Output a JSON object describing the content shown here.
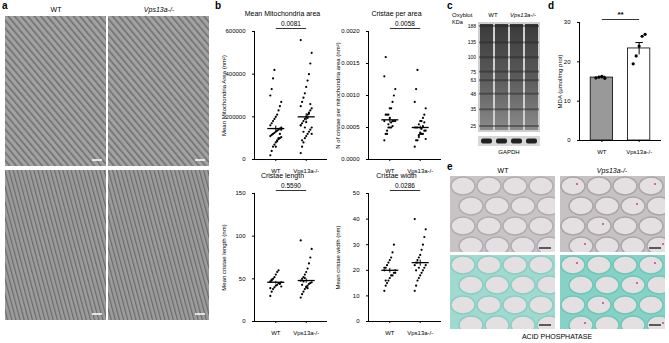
{
  "panels": {
    "a": {
      "letter": "a",
      "labels": [
        "WT",
        "Vps13a-/-"
      ]
    },
    "b": {
      "letter": "b"
    },
    "c": {
      "letter": "c",
      "title": "Oxyblot",
      "labels": [
        "WT",
        "Vps13a-/-"
      ],
      "marker_unit": "KDa",
      "markers": [
        188,
        135,
        100,
        75,
        63,
        48,
        35,
        25
      ],
      "loading_control": "GAPDH"
    },
    "d": {
      "letter": "d"
    },
    "e": {
      "letter": "e",
      "labels": [
        "WT",
        "Vps13a-/-"
      ],
      "caption": "ACID PHOSPHATASE"
    }
  },
  "chart_data": [
    {
      "type": "scatter",
      "title": "Mean Mitochondria area",
      "y_label": "Mean Mitochondria Area (nm²)",
      "color": "#000000",
      "series": [
        {
          "name": "WT",
          "values": [
            20000,
            40000,
            60000,
            70000,
            80000,
            90000,
            95000,
            100000,
            105000,
            110000,
            115000,
            120000,
            125000,
            130000,
            135000,
            140000,
            145000,
            150000,
            160000,
            170000,
            180000,
            190000,
            200000,
            210000,
            230000,
            250000,
            270000,
            300000,
            330000,
            380000,
            420000,
            60000,
            85000,
            100000,
            120000,
            140000
          ]
        },
        {
          "name": "Vps13a-/-",
          "values": [
            30000,
            60000,
            80000,
            100000,
            110000,
            120000,
            130000,
            140000,
            150000,
            160000,
            170000,
            180000,
            190000,
            200000,
            210000,
            220000,
            230000,
            240000,
            250000,
            270000,
            290000,
            310000,
            340000,
            370000,
            400000,
            450000,
            500000,
            560000,
            90000,
            130000,
            150000,
            175000,
            195000,
            215000,
            260000,
            120000,
            160000
          ]
        }
      ],
      "mean": [
        145000,
        200000
      ],
      "error": [
        14000,
        17000
      ],
      "annotation": "0.0081",
      "ylim": [
        0,
        600000
      ],
      "yticks": [
        0,
        200000,
        400000,
        600000
      ]
    },
    {
      "type": "scatter",
      "title": "Cristae per area",
      "y_label": "N of cristae per mitochondria area (nm²)",
      "color": "#000000",
      "series": [
        {
          "name": "WT",
          "values": [
            0.0003,
            0.0004,
            0.0004,
            0.0005,
            0.0005,
            0.0005,
            0.0006,
            0.0006,
            0.0006,
            0.0006,
            0.0007,
            0.0007,
            0.0007,
            0.0008,
            0.0008,
            0.0009,
            0.001,
            0.0011,
            0.0013,
            0.0016,
            0.00045,
            0.00055,
            0.00065,
            0.00058,
            0.00052
          ]
        },
        {
          "name": "Vps13a-/-",
          "values": [
            0.0002,
            0.0003,
            0.0003,
            0.00035,
            0.0004,
            0.0004,
            0.0004,
            0.00045,
            0.00045,
            0.0005,
            0.0005,
            0.0005,
            0.00055,
            0.0006,
            0.0006,
            0.00065,
            0.0007,
            0.0008,
            0.0009,
            0.0011,
            0.0014,
            0.00038,
            0.00042,
            0.00048,
            0.00052,
            0.00058,
            0.00032
          ]
        }
      ],
      "mean": [
        0.00062,
        0.0005
      ],
      "error": [
        4e-05,
        3e-05
      ],
      "annotation": "0.0058",
      "ylim": [
        0,
        0.002
      ],
      "yticks": [
        {
          "value": 0,
          "label": "0.0000"
        },
        {
          "value": 0.0005,
          "label": "0.0005"
        },
        {
          "value": 0.001,
          "label": "0.0010"
        },
        {
          "value": 0.0015,
          "label": "0.0015"
        },
        {
          "value": 0.002,
          "label": "0.0020"
        }
      ]
    },
    {
      "type": "scatter",
      "title": "Cristae length",
      "y_label": "Mean cristae length (nm)",
      "color": "#000000",
      "series": [
        {
          "name": "WT",
          "values": [
            30,
            35,
            38,
            40,
            42,
            43,
            45,
            45,
            46,
            47,
            48,
            50,
            52,
            55,
            58,
            60,
            44,
            41,
            39,
            49
          ]
        },
        {
          "name": "Vps13a-/-",
          "values": [
            28,
            32,
            35,
            38,
            40,
            42,
            44,
            45,
            46,
            48,
            50,
            52,
            55,
            58,
            62,
            68,
            75,
            85,
            95,
            43,
            47,
            51,
            41,
            39
          ]
        }
      ],
      "mean": [
        46,
        48
      ],
      "error": [
        1.5,
        2.5
      ],
      "annotation": "0.5590",
      "ylim": [
        0,
        150
      ],
      "yticks": [
        0,
        50,
        100,
        150
      ]
    },
    {
      "type": "scatter",
      "title": "Cristae width",
      "y_label": "Mean cristae width (nm)",
      "color": "#000000",
      "series": [
        {
          "name": "WT",
          "values": [
            12,
            14,
            15,
            16,
            17,
            18,
            18,
            19,
            20,
            20,
            21,
            22,
            23,
            24,
            25,
            27,
            30,
            19,
            21,
            16
          ]
        },
        {
          "name": "Vps13a-/-",
          "values": [
            12,
            14,
            16,
            17,
            18,
            19,
            20,
            21,
            22,
            22,
            23,
            24,
            25,
            26,
            28,
            30,
            33,
            36,
            40,
            20,
            23,
            21
          ]
        }
      ],
      "mean": [
        20,
        23
      ],
      "error": [
        0.9,
        1.2
      ],
      "annotation": "0.0286",
      "ylim": [
        0,
        50
      ],
      "yticks": [
        0,
        10,
        20,
        30,
        40,
        50
      ]
    },
    {
      "type": "bar",
      "y_label": "MDA (μmol/mg prot)",
      "categories": [
        "WT",
        "Vps13a-/-"
      ],
      "values": [
        16,
        23.4
      ],
      "error": [
        0.3,
        1.5
      ],
      "colors": [
        "#999999",
        "#ffffff"
      ],
      "points": [
        [
          15.9,
          16.1,
          16.3,
          15.8
        ],
        [
          19.5,
          21.5,
          24,
          26.5,
          27
        ]
      ],
      "annotation": "**",
      "ylim": [
        0,
        30
      ],
      "yticks": [
        0,
        10,
        20,
        30
      ]
    }
  ]
}
